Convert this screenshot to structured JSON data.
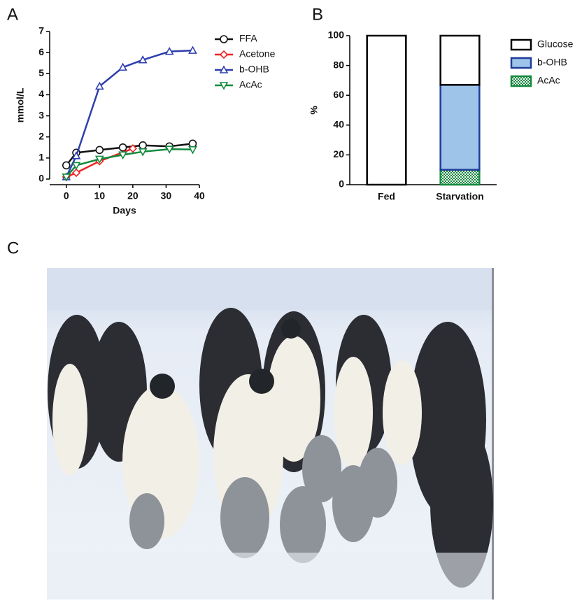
{
  "chart_data": [
    {
      "type": "line",
      "panel": "A",
      "xlabel": "Days",
      "ylabel": "mmol/L",
      "xlim": [
        -5,
        40
      ],
      "xticks": [
        0,
        10,
        20,
        30,
        40
      ],
      "ylim": [
        0,
        7
      ],
      "yticks": [
        0,
        1,
        2,
        3,
        4,
        5,
        6,
        7
      ],
      "series": [
        {
          "name": "FFA",
          "color": "#111111",
          "marker": "circle",
          "x": [
            0,
            3,
            10,
            17,
            23,
            31,
            38
          ],
          "values": [
            0.65,
            1.25,
            1.38,
            1.5,
            1.6,
            1.55,
            1.68
          ]
        },
        {
          "name": "Acetone",
          "color": "#ee2222",
          "marker": "diamond",
          "x": [
            0,
            3,
            10,
            20
          ],
          "values": [
            0.1,
            0.3,
            0.85,
            1.45
          ]
        },
        {
          "name": "b-OHB",
          "color": "#2e3fae",
          "marker": "triangle-up",
          "x": [
            0,
            3,
            10,
            17,
            23,
            31,
            38
          ],
          "values": [
            0.1,
            1.1,
            4.4,
            5.3,
            5.65,
            6.05,
            6.1
          ]
        },
        {
          "name": "AcAc",
          "color": "#138a3e",
          "marker": "triangle-down",
          "x": [
            0,
            3,
            10,
            17,
            23,
            31,
            38
          ],
          "values": [
            0.1,
            0.65,
            0.95,
            1.15,
            1.3,
            1.42,
            1.4
          ]
        }
      ]
    },
    {
      "type": "stacked-bar",
      "panel": "B",
      "ylabel": "%",
      "categories": [
        "Fed",
        "Starvation"
      ],
      "ylim": [
        0,
        100
      ],
      "yticks": [
        0,
        20,
        40,
        60,
        80,
        100
      ],
      "series": [
        {
          "name": "Glucose",
          "color": "#ffffff",
          "edge": "#000000",
          "values": [
            100,
            33
          ]
        },
        {
          "name": "b-OHB",
          "color": "#9fc4ea",
          "edge": "#1f3c99",
          "values": [
            0,
            57
          ]
        },
        {
          "name": "AcAc",
          "color": "#138a3e",
          "edge": "#138a3e",
          "hatch": true,
          "values": [
            0,
            10
          ]
        }
      ]
    }
  ],
  "photo": {
    "panel": "C"
  }
}
